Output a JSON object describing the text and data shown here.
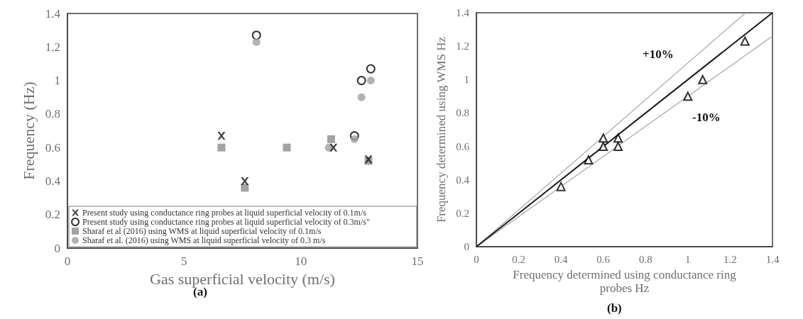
{
  "chart_data": [
    {
      "type": "scatter",
      "xlabel": "Gas superficial velocity (m/s)",
      "ylabel": "Frequency (Hz)",
      "annotations": [
        "(a)"
      ],
      "xlim": [
        0,
        15
      ],
      "xticks": [
        0,
        5,
        10,
        15
      ],
      "ylim": [
        0,
        1.4
      ],
      "yticks": [
        0,
        0.2,
        0.4,
        0.6,
        0.8,
        1,
        1.2,
        1.4
      ],
      "grid": false,
      "legend": "bottom",
      "series": [
        {
          "name": "Present study using conductance ring probes at liquid superficial velocity of 0.1m/s",
          "color": "#111111",
          "marker": "cross",
          "x": [
            6.6,
            7.6,
            11.4,
            12.9
          ],
          "values": [
            0.67,
            0.4,
            0.6,
            0.53
          ]
        },
        {
          "name": "Present study using conductance ring probes at liquid superficial velocity of 0.3m/s\"",
          "color": "#000000",
          "marker": "circle",
          "x": [
            8.1,
            12.6,
            13.0,
            12.3
          ],
          "values": [
            1.27,
            1.0,
            1.07,
            0.67
          ]
        },
        {
          "name": "Sharaf et al (2016) using WMS at liquid superficial velocity of 0.1m/s",
          "color": "#8c8c8c",
          "marker": "square",
          "x": [
            6.6,
            7.6,
            9.4,
            11.3,
            12.9
          ],
          "values": [
            0.6,
            0.36,
            0.6,
            0.65,
            0.52
          ]
        },
        {
          "name": "Sharaf et al. (2016) using WMS at liquid superficial velocity of 0.3 m/s",
          "color": "#a0a0a0",
          "marker": "circle",
          "x": [
            8.1,
            13.0,
            12.6,
            12.3,
            11.2
          ],
          "values": [
            1.23,
            1.0,
            0.9,
            0.65,
            0.6
          ]
        }
      ]
    },
    {
      "type": "scatter",
      "xlabel": "Frequency determined using conductance ring\nprobes Hz",
      "ylabel": "Frequency determined using WMS Hz",
      "annotations": [
        "(b)",
        "+10%",
        "-10%"
      ],
      "xlim": [
        0,
        1.4
      ],
      "xticks": [
        0,
        0.2,
        0.4,
        0.6,
        0.8,
        1,
        1.2,
        1.4
      ],
      "ylim": [
        0,
        1.4
      ],
      "yticks": [
        0,
        0.2,
        0.4,
        0.6,
        0.8,
        1,
        1.2,
        1.4
      ],
      "grid": false,
      "series": [
        {
          "type": "line",
          "color": "#a6a6a6",
          "marker": "none",
          "line_style": "solid",
          "x": [
            0,
            1.273
          ],
          "values": [
            0,
            1.4
          ]
        },
        {
          "type": "line",
          "color": "#a6a6a6",
          "marker": "none",
          "line_style": "solid",
          "x": [
            0,
            1.4
          ],
          "values": [
            0,
            1.26
          ]
        },
        {
          "type": "line",
          "color": "#1a1a1a",
          "marker": "none",
          "line_style": "solid",
          "x": [
            0,
            1.4
          ],
          "values": [
            0,
            1.4
          ]
        },
        {
          "color": "#000000",
          "marker": "triangle",
          "x": [
            0.4,
            0.53,
            0.6,
            0.6,
            0.67,
            0.67,
            1.0,
            1.07,
            1.27
          ],
          "values": [
            0.36,
            0.52,
            0.65,
            0.6,
            0.65,
            0.6,
            0.9,
            1.0,
            1.23
          ]
        }
      ]
    }
  ]
}
